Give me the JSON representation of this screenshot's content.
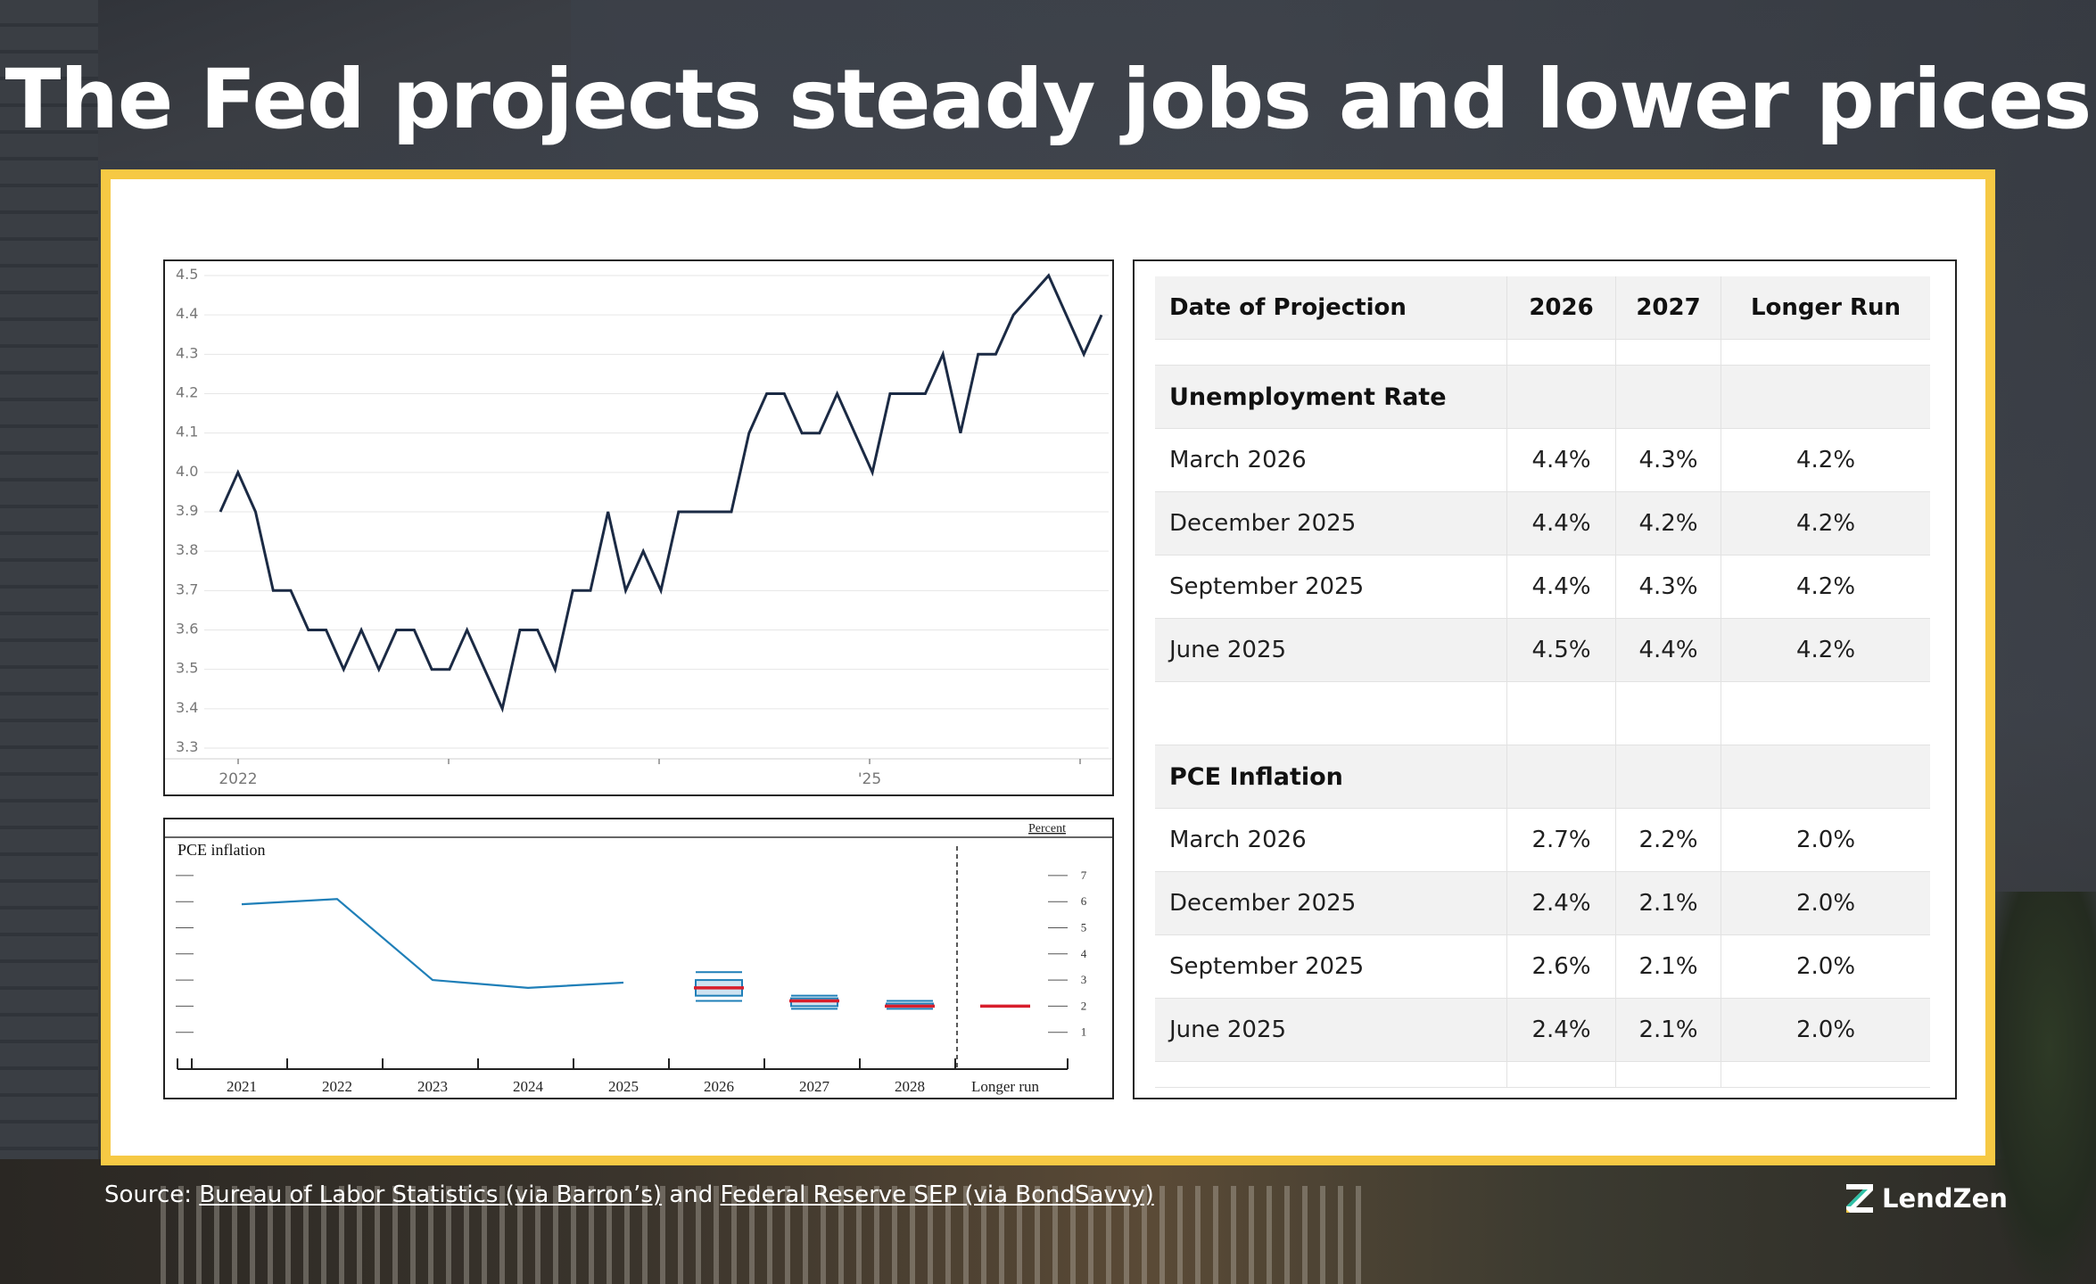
{
  "title": "The Fed projects steady jobs and lower prices",
  "source": {
    "prefix": "Source: ",
    "link1": "Bureau of Labor Statistics (via Barron’s)",
    "middle": " and ",
    "link2": "Federal Reserve SEP (via BondSavvy)"
  },
  "logo": {
    "text": "LendZen",
    "icon": "lendzen-z-icon"
  },
  "colors": {
    "accent_border": "#f6c944",
    "line": "#1b2a44",
    "pce_line": "#1f7fb8",
    "median_marker": "#d81e2c"
  },
  "table": {
    "headers": [
      "Date of Projection",
      "2026",
      "2027",
      "Longer Run"
    ],
    "unemployment": {
      "label": "Unemployment Rate",
      "rows": [
        [
          "March 2026",
          "4.4%",
          "4.3%",
          "4.2%"
        ],
        [
          "December 2025",
          "4.4%",
          "4.2%",
          "4.2%"
        ],
        [
          "September 2025",
          "4.4%",
          "4.3%",
          "4.2%"
        ],
        [
          "June 2025",
          "4.5%",
          "4.4%",
          "4.2%"
        ]
      ]
    },
    "pce": {
      "label": "PCE Inflation",
      "rows": [
        [
          "March 2026",
          "2.7%",
          "2.2%",
          "2.0%"
        ],
        [
          "December 2025",
          "2.4%",
          "2.1%",
          "2.0%"
        ],
        [
          "September 2025",
          "2.6%",
          "2.1%",
          "2.0%"
        ],
        [
          "June 2025",
          "2.4%",
          "2.1%",
          "2.0%"
        ]
      ]
    }
  },
  "chart_data": [
    {
      "type": "line",
      "title": "",
      "xlabel": "",
      "ylabel": "",
      "ylim": [
        3.3,
        4.5
      ],
      "yticks": [
        "4.5",
        "4.4",
        "4.3",
        "4.2",
        "4.1",
        "4.0",
        "3.9",
        "3.8",
        "3.7",
        "3.6",
        "3.5",
        "3.4",
        "3.3"
      ],
      "xtick_labels": [
        "2022",
        "'25"
      ],
      "grid": true,
      "series": [
        {
          "values": [
            3.9,
            4.0,
            3.9,
            3.7,
            3.7,
            3.6,
            3.6,
            3.5,
            3.6,
            3.5,
            3.6,
            3.6,
            3.5,
            3.5,
            3.6,
            3.5,
            3.4,
            3.6,
            3.6,
            3.5,
            3.7,
            3.7,
            3.9,
            3.7,
            3.8,
            3.7,
            3.9,
            3.9,
            3.9,
            3.9,
            4.1,
            4.2,
            4.2,
            4.1,
            4.1,
            4.2,
            4.1,
            4.0,
            4.2,
            4.2,
            4.2,
            4.3,
            4.1,
            4.3,
            4.3,
            4.4,
            4.45,
            4.5,
            4.4,
            4.3,
            4.4
          ]
        }
      ]
    },
    {
      "type": "line",
      "title": "PCE inflation",
      "unit_label": "Percent",
      "categories": [
        "2021",
        "2022",
        "2023",
        "2024",
        "2025",
        "2026",
        "2027",
        "2028",
        "Longer run"
      ],
      "ylim": [
        0,
        8
      ],
      "yticks": [
        "7",
        "6",
        "5",
        "4",
        "3",
        "2",
        "1"
      ],
      "series": [
        {
          "values": [
            5.9,
            6.1,
            3.0,
            2.7,
            2.9,
            null,
            null,
            null,
            null
          ]
        }
      ],
      "projections": [
        {
          "category": "2026",
          "high": 3.3,
          "q3": 3.0,
          "median": 2.7,
          "q1": 2.4,
          "low": 2.2
        },
        {
          "category": "2027",
          "high": 2.4,
          "q3": 2.3,
          "median": 2.2,
          "q1": 2.0,
          "low": 1.9
        },
        {
          "category": "2028",
          "high": 2.2,
          "q3": 2.1,
          "median": 2.0,
          "q1": 2.0,
          "low": 1.9
        },
        {
          "category": "Longer run",
          "median": 2.0
        }
      ]
    }
  ]
}
